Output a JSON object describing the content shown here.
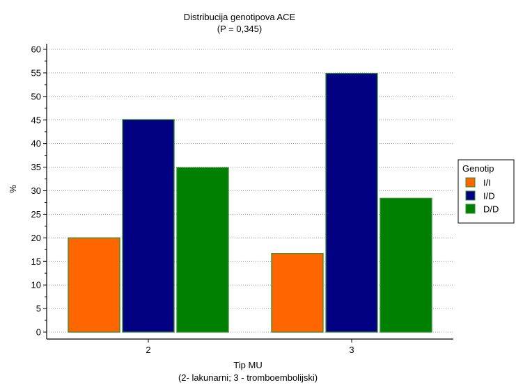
{
  "chart_data": {
    "type": "bar",
    "title": "Distribucija genotipova ACE",
    "subtitle": "(P = 0,345)",
    "xlabel": "Tip MU",
    "xlabel_note": "(2- lakunarni; 3 - tromboembolijski)",
    "ylabel": "%",
    "ylim": [
      0,
      60
    ],
    "yticks": [
      0,
      5,
      10,
      15,
      20,
      25,
      30,
      35,
      40,
      45,
      50,
      55,
      60
    ],
    "categories": [
      "2",
      "3"
    ],
    "series": [
      {
        "name": "I/I",
        "color": "#ff6600",
        "values": [
          20,
          16.7
        ]
      },
      {
        "name": "I/D",
        "color": "#000080",
        "values": [
          45.1,
          54.9
        ]
      },
      {
        "name": "D/D",
        "color": "#008000",
        "values": [
          34.9,
          28.4
        ]
      }
    ],
    "legend": {
      "title": "Genotip",
      "placement": "right"
    },
    "grid": "horizontal-dotted"
  }
}
